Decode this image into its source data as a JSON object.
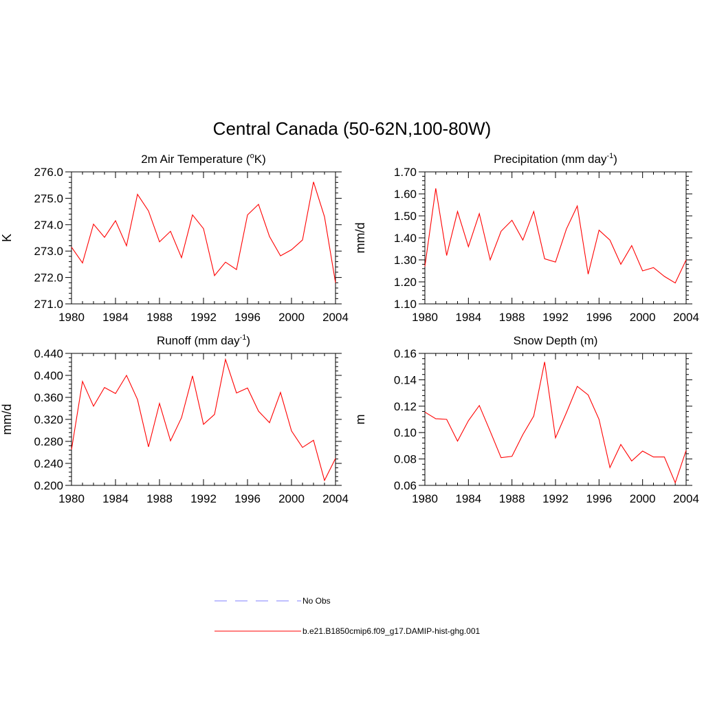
{
  "title": "Central Canada (50-62N,100-80W)",
  "colors": {
    "model": "#ff0000",
    "obs": "#9999ff",
    "axis": "#000000"
  },
  "legend": {
    "obs_label": "No Obs",
    "model_label": "b.e21.B1850cmip6.f09_g17.DAMIP-hist-ghg.001"
  },
  "chart_data": [
    {
      "type": "line",
      "title_main": "2m Air Temperature (",
      "title_sup1": "o",
      "title_rest": "K)",
      "ylabel": "K",
      "xlim": [
        1980,
        2004
      ],
      "ylim": [
        271.0,
        276.0
      ],
      "xticks": [
        "1980",
        "1984",
        "1988",
        "1992",
        "1996",
        "2000",
        "2004"
      ],
      "yticks": [
        "271.0",
        "272.0",
        "273.0",
        "274.0",
        "275.0",
        "276.0"
      ],
      "x": [
        1980,
        1981,
        1982,
        1983,
        1984,
        1985,
        1986,
        1987,
        1988,
        1989,
        1990,
        1991,
        1992,
        1993,
        1994,
        1995,
        1996,
        1997,
        1998,
        1999,
        2000,
        2001,
        2002,
        2003,
        2004
      ],
      "series": [
        {
          "values": [
            273.15,
            272.55,
            274.02,
            273.52,
            274.15,
            273.2,
            275.15,
            274.52,
            273.35,
            273.75,
            272.75,
            274.37,
            273.85,
            272.07,
            272.58,
            272.3,
            274.37,
            274.77,
            273.55,
            272.82,
            273.05,
            273.42,
            275.62,
            274.3,
            271.8
          ]
        }
      ]
    },
    {
      "type": "line",
      "title_main": "Precipitation (mm day",
      "title_sup1": "-1",
      "title_rest": ")",
      "ylabel": "mm/d",
      "xlim": [
        1980,
        2004
      ],
      "ylim": [
        1.1,
        1.7
      ],
      "xticks": [
        "1980",
        "1984",
        "1988",
        "1992",
        "1996",
        "2000",
        "2004"
      ],
      "yticks": [
        "1.10",
        "1.20",
        "1.30",
        "1.40",
        "1.50",
        "1.60",
        "1.70"
      ],
      "x": [
        1980,
        1981,
        1982,
        1983,
        1984,
        1985,
        1986,
        1987,
        1988,
        1989,
        1990,
        1991,
        1992,
        1993,
        1994,
        1995,
        1996,
        1997,
        1998,
        1999,
        2000,
        2001,
        2002,
        2003,
        2004
      ],
      "series": [
        {
          "values": [
            1.27,
            1.625,
            1.32,
            1.52,
            1.36,
            1.51,
            1.3,
            1.43,
            1.48,
            1.39,
            1.52,
            1.305,
            1.29,
            1.44,
            1.545,
            1.235,
            1.435,
            1.39,
            1.28,
            1.365,
            1.25,
            1.265,
            1.225,
            1.195,
            1.3
          ]
        }
      ]
    },
    {
      "type": "line",
      "title_main": "Runoff (mm day",
      "title_sup1": "-1",
      "title_rest": ")",
      "ylabel": "mm/d",
      "xlim": [
        1980,
        2004
      ],
      "ylim": [
        0.2,
        0.44
      ],
      "xticks": [
        "1980",
        "1984",
        "1988",
        "1992",
        "1996",
        "2000",
        "2004"
      ],
      "yticks": [
        "0.200",
        "0.240",
        "0.280",
        "0.320",
        "0.360",
        "0.400",
        "0.440"
      ],
      "x": [
        1980,
        1981,
        1982,
        1983,
        1984,
        1985,
        1986,
        1987,
        1988,
        1989,
        1990,
        1991,
        1992,
        1993,
        1994,
        1995,
        1996,
        1997,
        1998,
        1999,
        2000,
        2001,
        2002,
        2003,
        2004
      ],
      "series": [
        {
          "values": [
            0.265,
            0.389,
            0.344,
            0.378,
            0.367,
            0.4,
            0.356,
            0.27,
            0.349,
            0.281,
            0.323,
            0.399,
            0.311,
            0.329,
            0.429,
            0.368,
            0.377,
            0.335,
            0.314,
            0.369,
            0.299,
            0.269,
            0.282,
            0.209,
            0.249
          ]
        }
      ]
    },
    {
      "type": "line",
      "title_main": "Snow Depth (m)",
      "title_sup1": "",
      "title_rest": "",
      "ylabel": "m",
      "xlim": [
        1980,
        2004
      ],
      "ylim": [
        0.06,
        0.16
      ],
      "xticks": [
        "1980",
        "1984",
        "1988",
        "1992",
        "1996",
        "2000",
        "2004"
      ],
      "yticks": [
        "0.06",
        "0.08",
        "0.10",
        "0.12",
        "0.14",
        "0.16"
      ],
      "x": [
        1980,
        1981,
        1982,
        1983,
        1984,
        1985,
        1986,
        1987,
        1988,
        1989,
        1990,
        1991,
        1992,
        1993,
        1994,
        1995,
        1996,
        1997,
        1998,
        1999,
        2000,
        2001,
        2002,
        2003,
        2004
      ],
      "series": [
        {
          "values": [
            0.1155,
            0.1105,
            0.11,
            0.0935,
            0.109,
            0.1205,
            0.101,
            0.081,
            0.082,
            0.0985,
            0.1125,
            0.1535,
            0.096,
            0.115,
            0.135,
            0.1285,
            0.11,
            0.0735,
            0.091,
            0.0785,
            0.086,
            0.0815,
            0.0815,
            0.062,
            0.0865
          ]
        }
      ]
    }
  ]
}
